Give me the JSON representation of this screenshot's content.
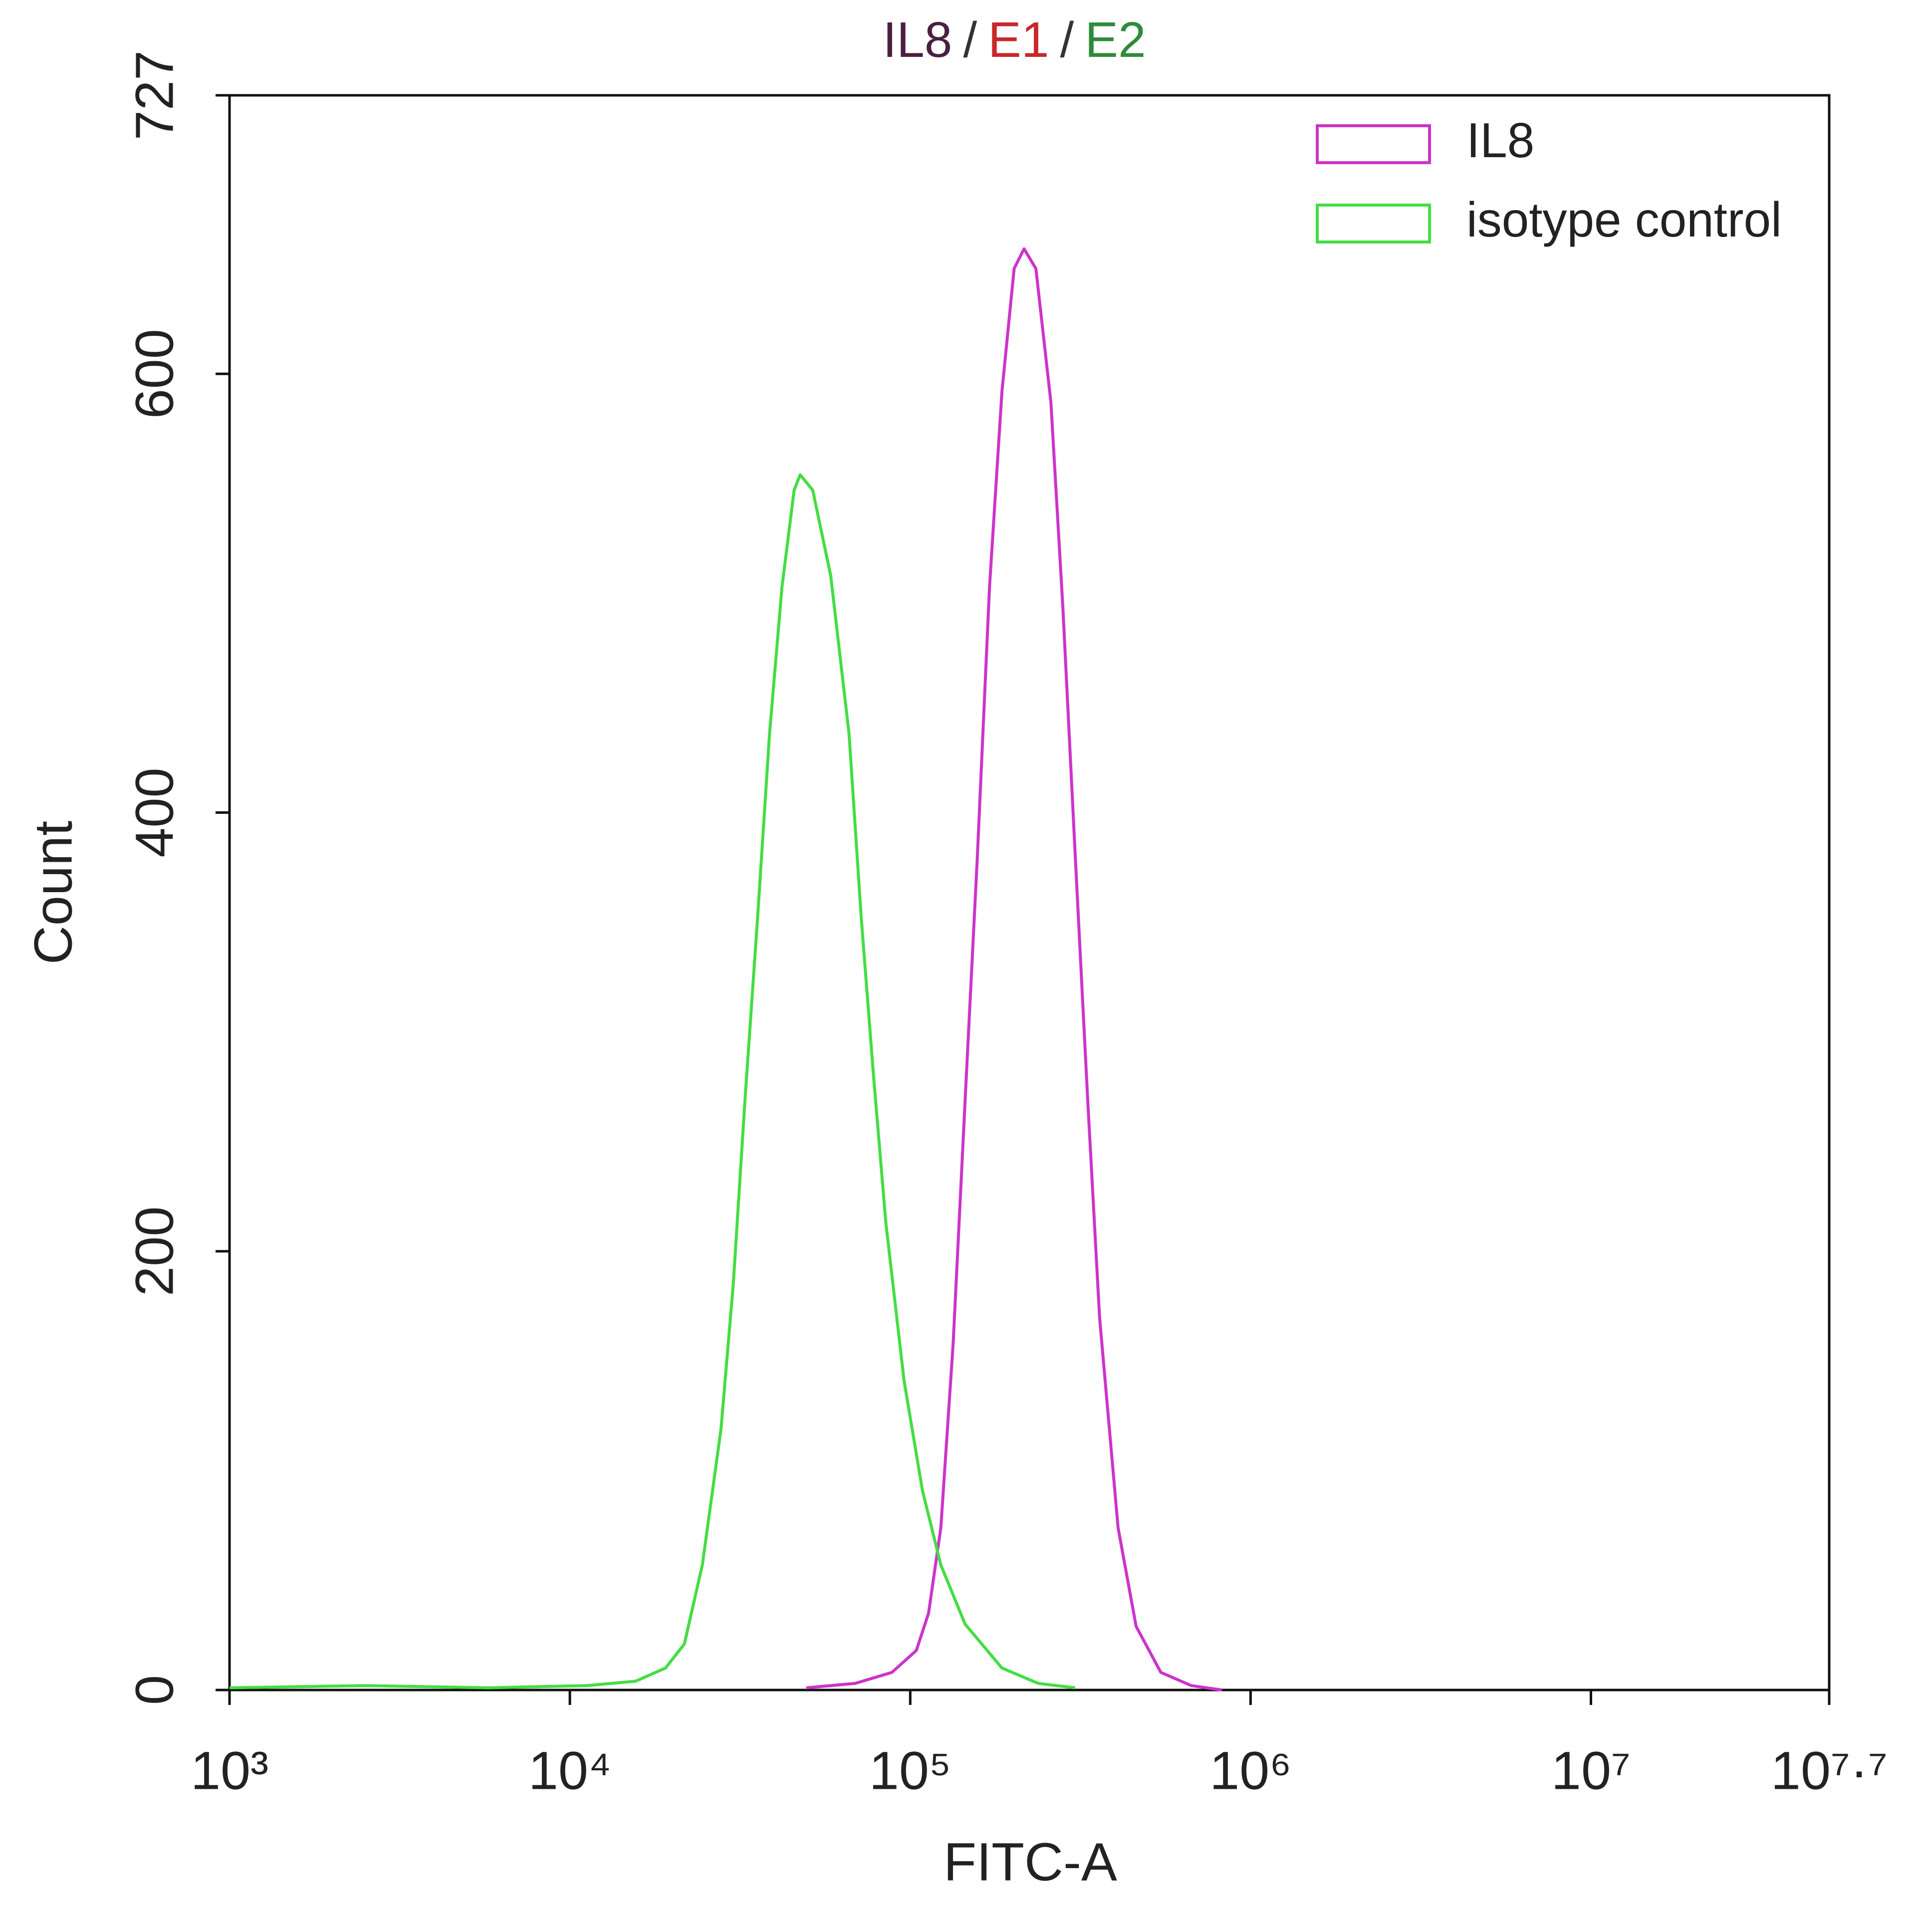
{
  "chart_data": {
    "type": "line",
    "title_parts": [
      {
        "text": "IL8",
        "color": "#4a2040"
      },
      {
        "text": "/",
        "color": "#333333"
      },
      {
        "text": "E1",
        "color": "#c8282a"
      },
      {
        "text": "/",
        "color": "#333333"
      },
      {
        "text": "E2",
        "color": "#2e8b3a"
      }
    ],
    "x_label": "FITC-A",
    "y_label": "Count",
    "x_scale": "log",
    "xlim": [
      1000,
      50118723
    ],
    "xticks": [
      {
        "value": 1000,
        "label": "10³"
      },
      {
        "value": 10000,
        "label": "10⁴"
      },
      {
        "value": 100000,
        "label": "10⁵"
      },
      {
        "value": 1000000,
        "label": "10⁶"
      },
      {
        "value": 10000000,
        "label": "10⁷"
      },
      {
        "value": 50118723,
        "label": "10⁷·⁷"
      }
    ],
    "ylim": [
      0,
      727
    ],
    "yticks": [
      0,
      200,
      400,
      600,
      727
    ],
    "grid": false,
    "legend": "upper right",
    "series": [
      {
        "name": "IL8",
        "color": "#cc33cc",
        "x": [
          49500,
          68900,
          88300,
          104200,
          113200,
          123000,
          133700,
          145000,
          157500,
          171000,
          186000,
          202000,
          216000,
          234000,
          259000,
          281000,
          305000,
          332000,
          360000,
          408000,
          461000,
          545000,
          670000,
          824000
        ],
        "values": [
          1,
          3,
          8,
          18,
          35,
          74,
          158,
          269,
          380,
          503,
          592,
          648,
          657,
          648,
          587,
          493,
          382,
          270,
          170,
          74,
          29,
          8,
          2,
          0
        ]
      },
      {
        "name": "isotype control",
        "color": "#44dd44",
        "x": [
          1000,
          2500,
          5800,
          11200,
          15600,
          19100,
          21700,
          24500,
          27800,
          30200,
          32700,
          35600,
          38600,
          42000,
          45600,
          47500,
          51700,
          58400,
          66100,
          71800,
          78000,
          84800,
          95900,
          108600,
          123000,
          145000,
          186000,
          238000,
          305000
        ],
        "values": [
          1,
          2,
          1,
          2,
          4,
          10,
          21,
          57,
          119,
          185,
          269,
          352,
          436,
          503,
          547,
          554,
          547,
          508,
          436,
          352,
          280,
          213,
          141,
          91,
          57,
          30,
          10,
          3,
          1
        ]
      }
    ]
  }
}
